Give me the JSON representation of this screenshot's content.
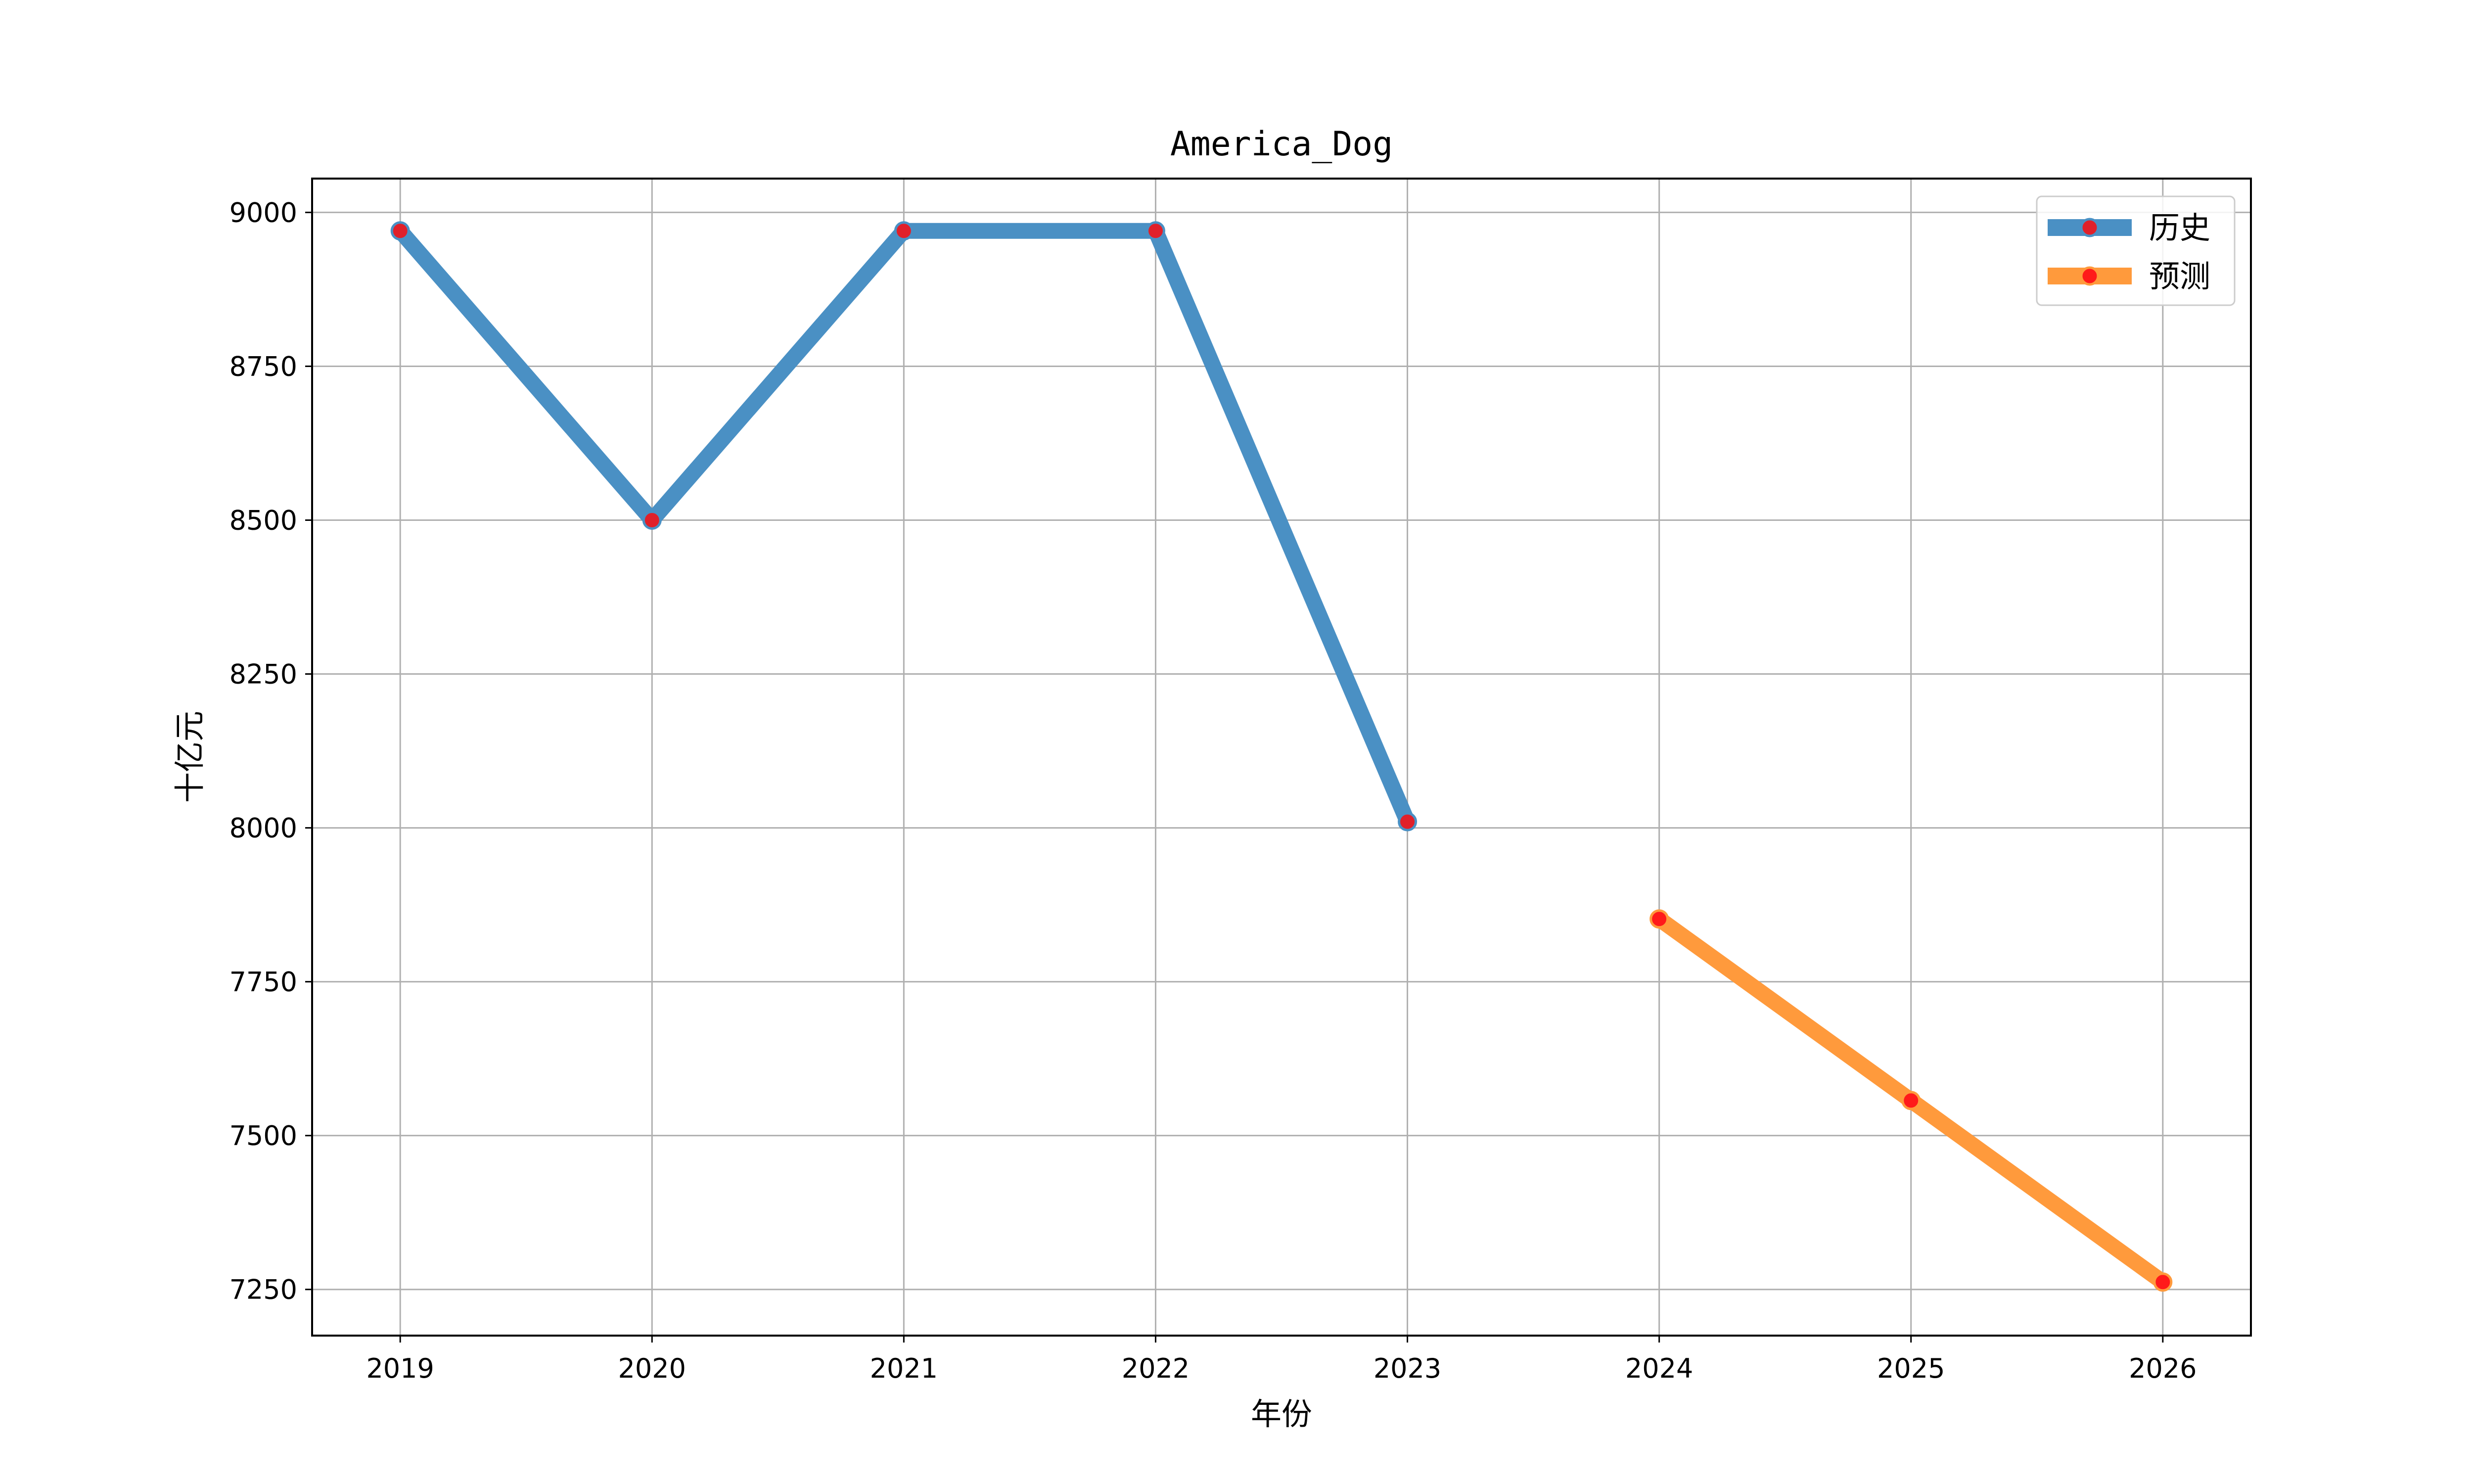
{
  "chart_data": {
    "type": "line",
    "title": "America_Dog",
    "xlabel": "年份",
    "ylabel": "十亿元",
    "x": [
      2019,
      2020,
      2021,
      2022,
      2023,
      2024,
      2025,
      2026
    ],
    "xlim": [
      2018.65,
      2026.35
    ],
    "ylim": [
      7175,
      9055
    ],
    "yticks": [
      7250,
      7500,
      7750,
      8000,
      8250,
      8500,
      8750,
      9000
    ],
    "grid": true,
    "legend_position": "top-right",
    "series": [
      {
        "name": "历史",
        "color": "#4a90c4",
        "marker_color": "#e0202a",
        "points": [
          [
            2019,
            8970
          ],
          [
            2020,
            8500
          ],
          [
            2021,
            8970
          ],
          [
            2022,
            8970
          ],
          [
            2023,
            8010
          ]
        ]
      },
      {
        "name": "预测",
        "color": "#ff9a3c",
        "marker_color": "#ff1a1a",
        "points": [
          [
            2024,
            7852
          ],
          [
            2025,
            7557
          ],
          [
            2026,
            7262
          ]
        ]
      }
    ]
  }
}
